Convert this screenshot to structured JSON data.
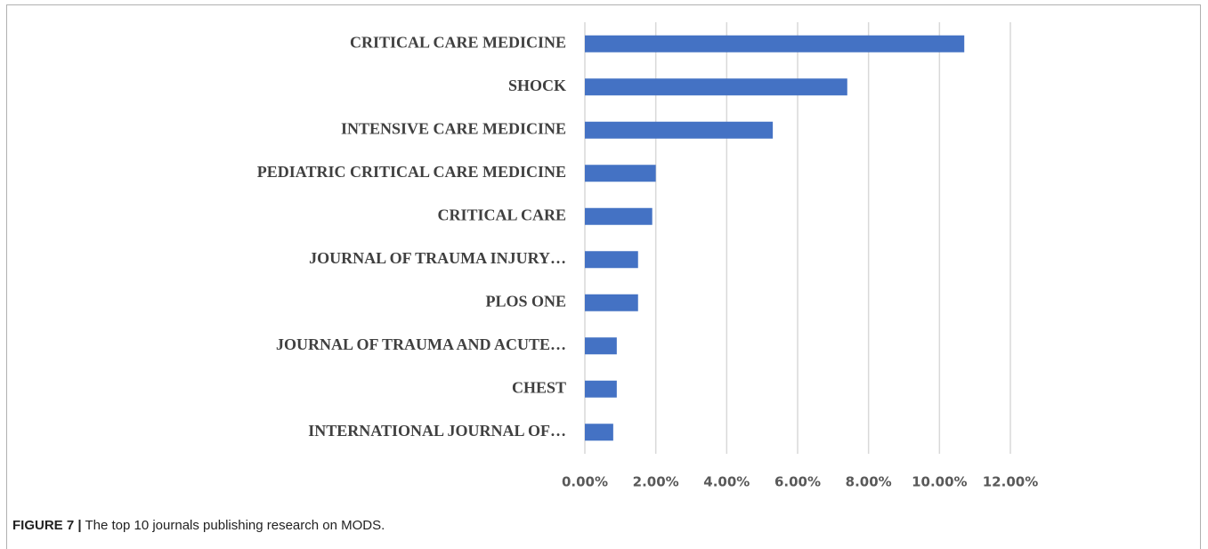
{
  "chart_data": {
    "type": "barh",
    "categories": [
      "CRITICAL CARE MEDICINE",
      "SHOCK",
      "INTENSIVE CARE MEDICINE",
      "PEDIATRIC CRITICAL CARE MEDICINE",
      "CRITICAL CARE",
      "JOURNAL OF TRAUMA INJURY…",
      "PLOS ONE",
      "JOURNAL OF TRAUMA AND ACUTE…",
      "CHEST",
      "INTERNATIONAL JOURNAL OF…"
    ],
    "values": [
      10.7,
      7.4,
      5.3,
      2.0,
      1.9,
      1.5,
      1.5,
      0.9,
      0.9,
      0.8
    ],
    "color": "#4472c4",
    "xlim": [
      0,
      12
    ],
    "xticks": [
      {
        "value": 0,
        "label": "0.00%"
      },
      {
        "value": 2,
        "label": "2.00%"
      },
      {
        "value": 4,
        "label": "4.00%"
      },
      {
        "value": 6,
        "label": "6.00%"
      },
      {
        "value": 8,
        "label": "8.00%"
      },
      {
        "value": 10,
        "label": "10.00%"
      },
      {
        "value": 12,
        "label": "12.00%"
      }
    ],
    "grid": true,
    "caption_label": "FIGURE 7 |",
    "caption": "The top 10 journals publishing research on MODS."
  }
}
